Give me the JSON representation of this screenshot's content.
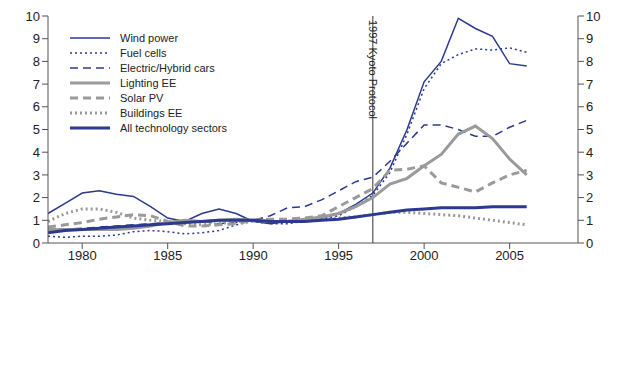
{
  "chart_data": {
    "type": "line",
    "x": [
      1978,
      1979,
      1980,
      1981,
      1982,
      1983,
      1984,
      1985,
      1986,
      1987,
      1988,
      1989,
      1990,
      1991,
      1992,
      1993,
      1994,
      1995,
      1996,
      1997,
      1998,
      1999,
      2000,
      2001,
      2002,
      2003,
      2004,
      2005,
      2006
    ],
    "xlim": [
      1978,
      2009
    ],
    "xticks": [
      1980,
      1985,
      1990,
      1995,
      2000,
      2005
    ],
    "ylim": [
      0,
      10
    ],
    "yticks": [
      0,
      1,
      2,
      3,
      4,
      5,
      6,
      7,
      8,
      9,
      10
    ],
    "y2lim": [
      0,
      10
    ],
    "y2ticks": [
      0,
      1,
      2,
      3,
      4,
      5,
      6,
      7,
      8,
      9,
      10
    ],
    "grid": false,
    "legend": "upper left",
    "annotations": [
      {
        "x": 1997,
        "label": "1997 Kyoto Protocol"
      }
    ],
    "series": [
      {
        "name": "Wind power",
        "color": "#2b3990",
        "line_style": "solid",
        "values": [
          1.3,
          1.75,
          2.2,
          2.3,
          2.15,
          2.05,
          1.6,
          1.1,
          0.95,
          1.3,
          1.5,
          1.3,
          0.95,
          0.85,
          0.95,
          1.0,
          1.1,
          1.3,
          1.7,
          2.2,
          3.3,
          5.0,
          7.1,
          8.0,
          9.9,
          9.45,
          9.1,
          7.9,
          7.8
        ]
      },
      {
        "name": "Fuel cells",
        "color": "#2b3990",
        "line_style": "dotted",
        "values": [
          0.3,
          0.25,
          0.3,
          0.3,
          0.35,
          0.5,
          0.55,
          0.5,
          0.4,
          0.45,
          0.55,
          0.8,
          0.95,
          0.85,
          0.85,
          0.95,
          1.05,
          1.2,
          1.6,
          2.1,
          3.1,
          4.8,
          6.8,
          7.9,
          8.3,
          8.55,
          8.5,
          8.6,
          8.4
        ]
      },
      {
        "name": "Electric/Hybrid cars",
        "color": "#2b3990",
        "line_style": "dashed",
        "values": [
          0.55,
          0.6,
          0.65,
          0.7,
          0.75,
          0.8,
          0.85,
          0.9,
          0.95,
          0.95,
          0.85,
          0.9,
          1.0,
          1.2,
          1.55,
          1.6,
          1.9,
          2.3,
          2.7,
          2.9,
          3.6,
          4.4,
          5.2,
          5.2,
          5.0,
          4.7,
          4.7,
          5.1,
          5.4
        ]
      },
      {
        "name": "Lighting EE",
        "color": "#9a9a9a",
        "line_style": "solid",
        "values": [
          0.6,
          0.6,
          0.6,
          0.6,
          0.6,
          0.65,
          0.75,
          0.9,
          1.0,
          0.95,
          1.0,
          1.05,
          1.0,
          0.95,
          0.95,
          1.05,
          1.15,
          1.3,
          1.6,
          2.0,
          2.6,
          2.85,
          3.4,
          3.9,
          4.8,
          5.15,
          4.6,
          3.7,
          3.0
        ]
      },
      {
        "name": "Solar PV",
        "color": "#9a9a9a",
        "line_style": "dashed",
        "values": [
          0.7,
          0.8,
          0.9,
          1.05,
          1.15,
          1.25,
          1.2,
          0.95,
          0.75,
          0.75,
          0.8,
          0.85,
          1.0,
          1.05,
          1.05,
          1.1,
          1.2,
          1.6,
          2.0,
          2.4,
          3.2,
          3.25,
          3.4,
          2.65,
          2.45,
          2.25,
          2.65,
          3.0,
          3.2
        ]
      },
      {
        "name": "Buildings EE",
        "color": "#9a9a9a",
        "line_style": "dotted",
        "values": [
          0.95,
          1.3,
          1.5,
          1.5,
          1.35,
          1.1,
          1.0,
          0.95,
          0.85,
          0.8,
          0.85,
          0.95,
          1.0,
          0.95,
          0.95,
          1.0,
          1.05,
          1.1,
          1.15,
          1.25,
          1.35,
          1.35,
          1.3,
          1.25,
          1.2,
          1.1,
          1.0,
          0.9,
          0.8
        ]
      },
      {
        "name": "All technology sectors",
        "color": "#2b3990",
        "line_style": "solid",
        "values": [
          0.45,
          0.55,
          0.6,
          0.65,
          0.7,
          0.75,
          0.8,
          0.85,
          0.9,
          0.95,
          1.0,
          1.0,
          1.0,
          0.95,
          0.95,
          0.95,
          1.0,
          1.05,
          1.15,
          1.25,
          1.35,
          1.45,
          1.5,
          1.55,
          1.55,
          1.55,
          1.6,
          1.6,
          1.6
        ]
      }
    ]
  }
}
